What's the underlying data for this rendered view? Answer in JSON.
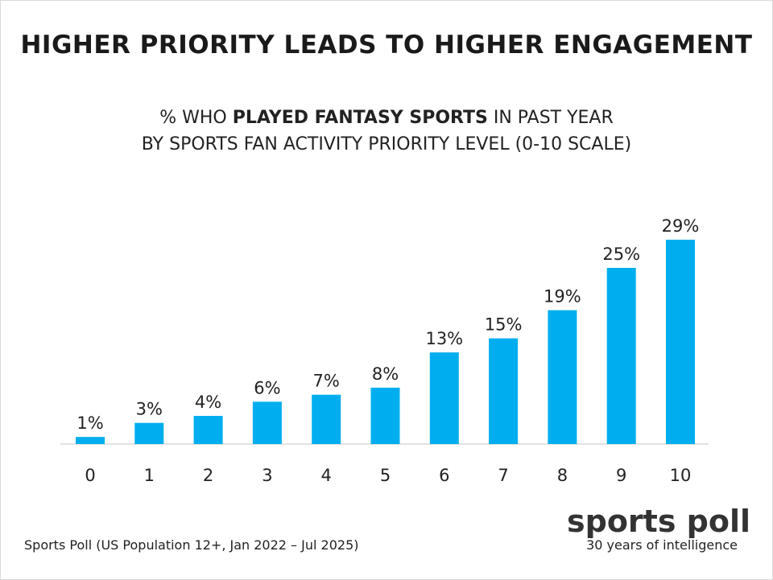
{
  "chart_data": {
    "type": "bar",
    "title": "HIGHER PRIORITY LEADS TO HIGHER ENGAGEMENT",
    "subtitle": {
      "line1_prefix": "% WHO ",
      "line1_bold": "PLAYED FANTASY SPORTS",
      "line1_suffix": " IN PAST YEAR",
      "line2": "BY SPORTS FAN ACTIVITY PRIORITY LEVEL (0-10 SCALE)"
    },
    "categories": [
      "0",
      "1",
      "2",
      "3",
      "4",
      "5",
      "6",
      "7",
      "8",
      "9",
      "10"
    ],
    "values": [
      1,
      3,
      4,
      6,
      7,
      8,
      13,
      15,
      19,
      25,
      29
    ],
    "value_labels": [
      "1%",
      "3%",
      "4%",
      "6%",
      "7%",
      "8%",
      "13%",
      "15%",
      "19%",
      "25%",
      "29%"
    ],
    "unit": "%",
    "xlabel": "",
    "ylabel": "",
    "ylim": [
      0,
      29
    ],
    "grid": false,
    "bar_color": "#00AEEF"
  },
  "footer": {
    "source": "Sports Poll (US Population 12+, Jan 2022 – Jul 2025)"
  },
  "brand": {
    "name": "sports poll",
    "tagline": "30 years of intelligence"
  }
}
